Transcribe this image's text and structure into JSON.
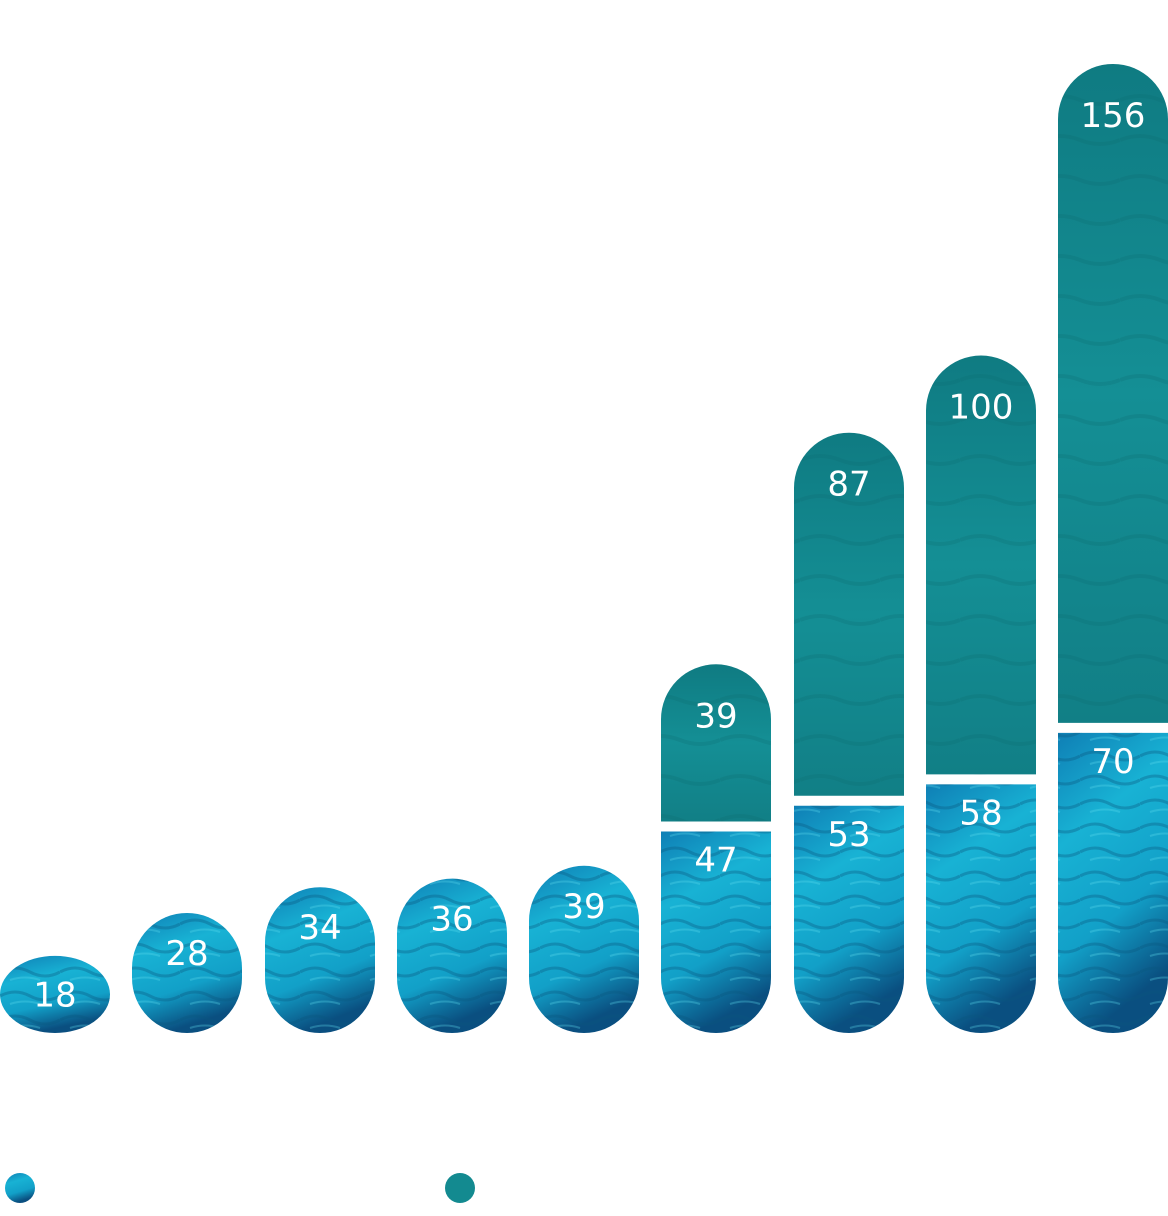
{
  "chart_data": {
    "type": "bar",
    "stacked": true,
    "title": "",
    "xlabel": "",
    "ylabel": "",
    "categories": [
      "",
      "",
      "",
      "",
      "",
      "",
      "",
      "",
      ""
    ],
    "series": [
      {
        "values": [
          18,
          28,
          34,
          36,
          39,
          47,
          53,
          58,
          70
        ],
        "color": "#12a9cc",
        "texture": "water"
      },
      {
        "values": [
          0,
          0,
          0,
          0,
          0,
          39,
          87,
          100,
          156
        ],
        "color": "#138f94",
        "texture": "water"
      }
    ],
    "ylim": [
      0,
      226
    ],
    "grid": false,
    "axes_visible": false,
    "data_labels": true,
    "legend": {
      "placement": "bottom-left",
      "entries": [
        "",
        ""
      ]
    }
  }
}
